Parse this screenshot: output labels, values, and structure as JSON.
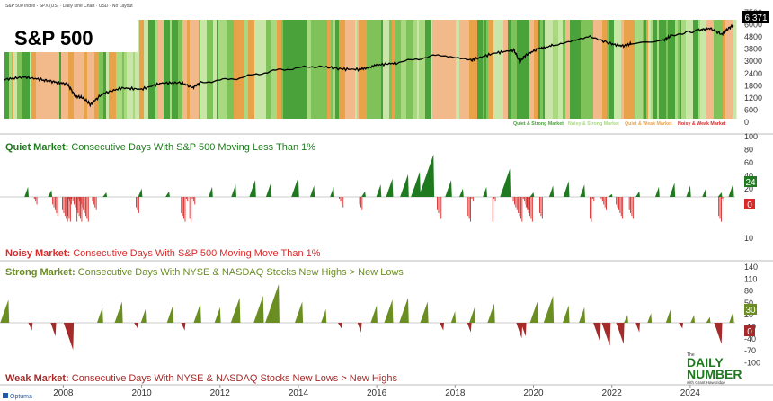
{
  "header": {
    "tiny_caption": "S&P 500 Index - SPX (US) · Daily Line Chart · USD · No Layout"
  },
  "panel1": {
    "title": "S&P 500",
    "price_label": "6,371",
    "y_ticks": [
      "7500",
      "6000",
      "4800",
      "3800",
      "3000",
      "2400",
      "1800",
      "1200",
      "600",
      "0"
    ],
    "legend": [
      {
        "label": "Quiet & Strong Market",
        "color": "#4aa33a"
      },
      {
        "label": "Noisy & Strong Market",
        "color": "#a8d880"
      },
      {
        "label": "Quiet & Weak Market",
        "color": "#e8a24a"
      },
      {
        "label": "Noisy & Weak Market",
        "color": "#d92b2b"
      }
    ]
  },
  "panel2": {
    "top_label_bold": "Quiet Market:",
    "top_label_rest": " Consecutive Days With S&P 500 Moving Less Than 1%",
    "bottom_label_bold": "Noisy Market:",
    "bottom_label_rest": " Consecutive Days With S&P 500 Moving Move Than 1%",
    "y_ticks_top": [
      "100",
      "80",
      "60",
      "40",
      "20"
    ],
    "y_ticks_bottom": [
      "0",
      "10"
    ],
    "value_positive": "24",
    "value_negative": "0"
  },
  "panel3": {
    "top_label_bold": "Strong Market:",
    "top_label_rest": " Consecutive Days With NYSE & NASDAQ Stocks New Highs > New Lows",
    "bottom_label_bold": "Weak Market:",
    "bottom_label_rest": " Consecutive Days With NYSE & NASDAQ Stocks New Lows > New Highs",
    "y_ticks": [
      "140",
      "110",
      "80",
      "50",
      "20",
      "-10",
      "-40",
      "-70",
      "-100"
    ],
    "value_positive": "30",
    "value_negative": "0"
  },
  "x_axis": {
    "years": [
      "2008",
      "2010",
      "2012",
      "2014",
      "2016",
      "2018",
      "2020",
      "2022",
      "2024"
    ]
  },
  "footer": {
    "optuma": "Optuma"
  },
  "logo": {
    "the": "The",
    "line1": "DAILY",
    "line2": "NUMBER",
    "tagline": "with Grant Hawkridge"
  },
  "colors": {
    "quiet": "#1f7a1f",
    "noisy": "#d92b2b",
    "strong": "#6b8e23",
    "weak": "#a52a2a",
    "price_line": "#000000"
  },
  "chart_data": [
    {
      "type": "line",
      "title": "S&P 500",
      "x": [
        2007.0,
        2007.5,
        2008.0,
        2008.3,
        2008.6,
        2008.8,
        2009.0,
        2009.2,
        2009.5,
        2010.0,
        2010.5,
        2011.0,
        2011.5,
        2011.8,
        2012.0,
        2013.0,
        2014.0,
        2015.0,
        2015.6,
        2016.1,
        2016.5,
        2017.0,
        2018.0,
        2018.9,
        2019.0,
        2019.5,
        2020.0,
        2020.15,
        2020.3,
        2020.6,
        2021.0,
        2021.9,
        2022.5,
        2022.8,
        2023.0,
        2023.8,
        2024.0,
        2024.7,
        2025.0,
        2025.3,
        2025.5,
        2025.6
      ],
      "values": [
        1420,
        1520,
        1400,
        1320,
        1250,
        900,
        850,
        700,
        950,
        1120,
        1080,
        1280,
        1300,
        1130,
        1300,
        1480,
        1850,
        2060,
        1900,
        1880,
        2120,
        2250,
        2750,
        2400,
        2500,
        2950,
        3230,
        2300,
        2800,
        3300,
        3700,
        4750,
        3800,
        3600,
        3850,
        4200,
        4750,
        5600,
        5900,
        5000,
        6000,
        6371
      ],
      "ylim": [
        0,
        7500
      ]
    },
    {
      "type": "bar",
      "title": "Quiet Market: Consecutive Days With S&P 500 Moving Less Than 1%",
      "series": [
        {
          "name": "Quiet Market",
          "x": [
            2007.6,
            2008.2,
            2009.6,
            2010.5,
            2011.2,
            2012.3,
            2012.9,
            2013.4,
            2013.8,
            2014.5,
            2014.9,
            2015.4,
            2016.2,
            2016.6,
            2016.9,
            2017.3,
            2017.6,
            2017.95,
            2018.4,
            2018.7,
            2019.3,
            2019.9,
            2020.5,
            2021.0,
            2021.4,
            2021.8,
            2022.5,
            2023.2,
            2023.7,
            2024.1,
            2024.5,
            2024.9,
            2025.3,
            2025.6
          ],
          "values": [
            18,
            12,
            8,
            15,
            10,
            18,
            22,
            30,
            25,
            35,
            20,
            18,
            10,
            22,
            32,
            40,
            45,
            75,
            30,
            15,
            18,
            50,
            8,
            20,
            28,
            22,
            5,
            10,
            18,
            25,
            20,
            15,
            8,
            24
          ]
        },
        {
          "name": "Noisy Market",
          "x": [
            2007.8,
            2008.3,
            2008.6,
            2008.8,
            2009.0,
            2009.3,
            2010.4,
            2011.6,
            2011.8,
            2015.6,
            2016.1,
            2018.1,
            2018.9,
            2019.5,
            2020.2,
            2020.4,
            2020.7,
            2022.0,
            2022.3,
            2022.7,
            2023.0,
            2025.3
          ],
          "values": [
            3,
            5,
            8,
            12,
            10,
            4,
            3,
            6,
            5,
            4,
            3,
            4,
            5,
            3,
            14,
            6,
            3,
            4,
            5,
            6,
            4,
            5
          ]
        }
      ],
      "ylim": [
        -15,
        100
      ]
    },
    {
      "type": "bar",
      "title": "Strong Market: Consecutive Days With NYSE & NASDAQ Stocks New Highs > New Lows",
      "series": [
        {
          "name": "Strong Market",
          "x": [
            2007.1,
            2009.5,
            2010.0,
            2010.6,
            2011.3,
            2012.0,
            2012.5,
            2013.0,
            2013.6,
            2014.0,
            2014.6,
            2015.2,
            2016.5,
            2016.9,
            2017.3,
            2017.8,
            2018.5,
            2019.0,
            2019.5,
            2020.6,
            2021.0,
            2021.4,
            2021.8,
            2022.9,
            2023.5,
            2024.0,
            2024.6,
            2025.0,
            2025.6
          ],
          "values": [
            60,
            40,
            55,
            35,
            45,
            50,
            40,
            65,
            70,
            100,
            55,
            35,
            45,
            60,
            65,
            55,
            30,
            40,
            50,
            55,
            70,
            45,
            40,
            20,
            25,
            35,
            20,
            15,
            30
          ]
        },
        {
          "name": "Weak Market",
          "x": [
            2007.7,
            2008.3,
            2008.75,
            2010.4,
            2011.6,
            2015.6,
            2016.1,
            2018.2,
            2018.9,
            2020.2,
            2020.3,
            2022.2,
            2022.45,
            2022.8,
            2023.2,
            2024.3,
            2025.3
          ],
          "values": [
            -20,
            -35,
            -70,
            -15,
            -20,
            -15,
            -25,
            -20,
            -25,
            -40,
            -35,
            -50,
            -60,
            -55,
            -25,
            -15,
            -55
          ]
        }
      ],
      "ylim": [
        -100,
        140
      ]
    }
  ]
}
